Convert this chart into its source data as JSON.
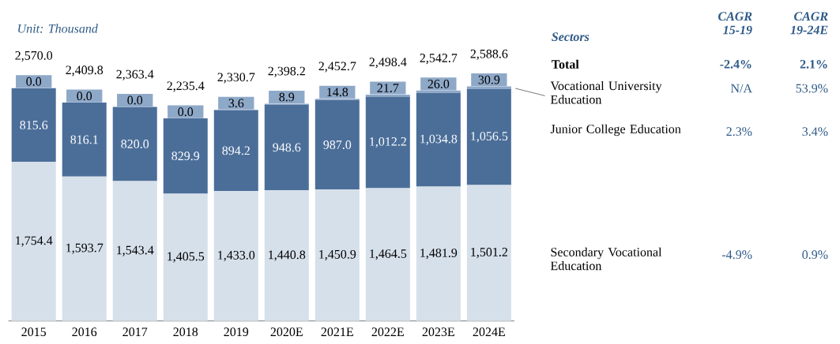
{
  "chart_data": {
    "type": "bar",
    "stacked": true,
    "categories": [
      "2015",
      "2016",
      "2017",
      "2018",
      "2019",
      "2020E",
      "2021E",
      "2022E",
      "2023E",
      "2024E"
    ],
    "series": [
      {
        "name": "Secondary Vocational Education",
        "color": "#d6e0ea",
        "values": [
          1754.4,
          1593.7,
          1543.4,
          1405.5,
          1433.0,
          1440.8,
          1450.9,
          1464.5,
          1481.9,
          1501.2
        ],
        "value_labels": [
          "1,754.4",
          "1,593.7",
          "1,543.4",
          "1,405.5",
          "1,433.0",
          "1,440.8",
          "1,450.9",
          "1,464.5",
          "1,481.9",
          "1,501.2"
        ]
      },
      {
        "name": "Junior College Education",
        "color": "#4b6e99",
        "values": [
          815.6,
          816.1,
          820.0,
          829.9,
          894.2,
          948.6,
          987.0,
          1012.2,
          1034.8,
          1056.5
        ],
        "value_labels": [
          "815.6",
          "816.1",
          "820.0",
          "829.9",
          "894.2",
          "948.6",
          "987.0",
          "1,012.2",
          "1,034.8",
          "1,056.5"
        ]
      },
      {
        "name": "Vocational University Education",
        "color": "#8ea8c8",
        "values": [
          0.0,
          0.0,
          0.0,
          0.0,
          3.6,
          8.9,
          14.8,
          21.7,
          26.0,
          30.9
        ],
        "value_labels": [
          "0.0",
          "0.0",
          "0.0",
          "0.0",
          "3.6",
          "8.9",
          "14.8",
          "21.7",
          "26.0",
          "30.9"
        ]
      }
    ],
    "totals": [
      "2,570.0",
      "2,409.8",
      "2,363.4",
      "2,235.4",
      "2,330.7",
      "2,398.2",
      "2,452.7",
      "2,498.4",
      "2,542.7",
      "2,588.6"
    ],
    "annotations": [
      "Unit: Thousand",
      "Sectors",
      "CAGR 15-19",
      "CAGR 19-24E",
      "Total",
      "-2.4%",
      "2.1%",
      "N/A",
      "53.9%",
      "2.3%",
      "3.4%",
      "-4.9%",
      "0.9%"
    ]
  }
}
